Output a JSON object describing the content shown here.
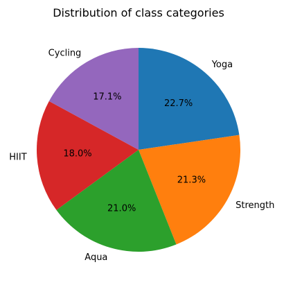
{
  "chart_data": {
    "type": "pie",
    "title": "Distribution of class categories",
    "start_angle_deg": 90,
    "direction": "clockwise",
    "slices": [
      {
        "label": "Yoga",
        "value": 22.7,
        "pct_label": "22.7%",
        "color": "#1f77b4"
      },
      {
        "label": "Strength",
        "value": 21.3,
        "pct_label": "21.3%",
        "color": "#ff7f0e"
      },
      {
        "label": "Aqua",
        "value": 21.0,
        "pct_label": "21.0%",
        "color": "#2ca02c"
      },
      {
        "label": "HIIT",
        "value": 18.0,
        "pct_label": "18.0%",
        "color": "#d62728"
      },
      {
        "label": "Cycling",
        "value": 17.1,
        "pct_label": "17.1%",
        "color": "#9467bd"
      }
    ]
  }
}
